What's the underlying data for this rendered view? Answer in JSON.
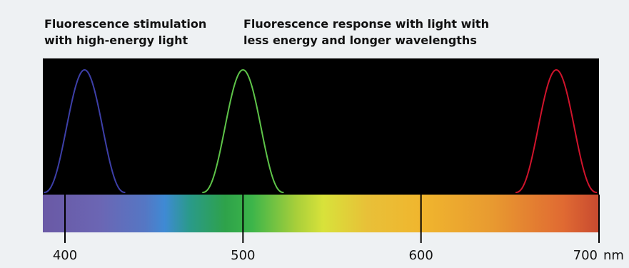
{
  "captions": {
    "stimulation": [
      "Fluorescence stimulation",
      "with high-energy light"
    ],
    "response": [
      "Fluorescence response with light with",
      "less energy and longer wavelengths"
    ]
  },
  "colors": {
    "background": "#eef1f3",
    "panel": "#000000",
    "text": "#111111"
  },
  "axis": {
    "unit": "nm",
    "min": 390,
    "max": 700,
    "ticks": [
      400,
      500,
      600,
      700
    ]
  },
  "spectrum_stops": [
    {
      "nm": 390,
      "color": "#6a5aa6"
    },
    {
      "nm": 420,
      "color": "#6b66b4"
    },
    {
      "nm": 445,
      "color": "#5577c4"
    },
    {
      "nm": 456,
      "color": "#3f8ad4"
    },
    {
      "nm": 470,
      "color": "#2a9a8a"
    },
    {
      "nm": 490,
      "color": "#2ea24a"
    },
    {
      "nm": 505,
      "color": "#3cb54a"
    },
    {
      "nm": 530,
      "color": "#a8cf3a"
    },
    {
      "nm": 545,
      "color": "#d8e23a"
    },
    {
      "nm": 570,
      "color": "#e8c038"
    },
    {
      "nm": 600,
      "color": "#f0b62e"
    },
    {
      "nm": 640,
      "color": "#e89a30"
    },
    {
      "nm": 680,
      "color": "#e06a32"
    },
    {
      "nm": 700,
      "color": "#c84a30"
    }
  ],
  "chart_data": {
    "type": "line",
    "xlabel": "nm",
    "xlim": [
      390,
      700
    ],
    "grid": false,
    "series": [
      {
        "peak_nm": 411,
        "half_width_nm": 22,
        "color": "#3d3fa8"
      },
      {
        "peak_nm": 500,
        "half_width_nm": 22,
        "color": "#5ec449"
      },
      {
        "peak_nm": 676,
        "half_width_nm": 22,
        "color": "#d0142c"
      }
    ]
  }
}
